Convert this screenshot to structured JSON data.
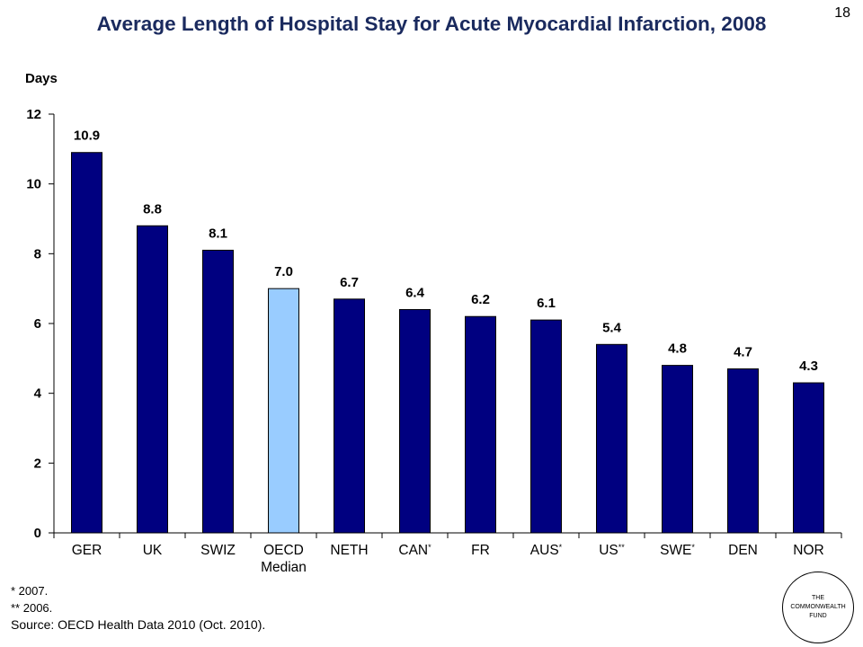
{
  "page": {
    "title": "Average Length of Hospital Stay for Acute Myocardial Infarction, 2008",
    "page_number": "18"
  },
  "chart_data": {
    "type": "bar",
    "title": "Average Length of Hospital Stay for Acute Myocardial Infarction, 2008",
    "ylabel": "Days",
    "xlabel": "",
    "ylim": [
      0,
      12
    ],
    "yticks": [
      0,
      2,
      4,
      6,
      8,
      10,
      12
    ],
    "grid": false,
    "categories": [
      {
        "name": "GER",
        "mark": ""
      },
      {
        "name": "UK",
        "mark": ""
      },
      {
        "name": "SWIZ",
        "mark": ""
      },
      {
        "name": "OECD",
        "line2": "Median",
        "mark": ""
      },
      {
        "name": "NETH",
        "mark": ""
      },
      {
        "name": "CAN",
        "mark": "*"
      },
      {
        "name": "FR",
        "mark": ""
      },
      {
        "name": "AUS",
        "mark": "*"
      },
      {
        "name": "US",
        "mark": "**"
      },
      {
        "name": "SWE",
        "mark": "*"
      },
      {
        "name": "DEN",
        "mark": ""
      },
      {
        "name": "NOR",
        "mark": ""
      }
    ],
    "values": [
      10.9,
      8.8,
      8.1,
      7.0,
      6.7,
      6.4,
      6.2,
      6.1,
      5.4,
      4.8,
      4.7,
      4.3
    ],
    "data_labels": [
      "10.9",
      "8.8",
      "8.1",
      "7.0",
      "6.7",
      "6.4",
      "6.2",
      "6.1",
      "5.4",
      "4.8",
      "4.7",
      "4.3"
    ],
    "colors": {
      "bar": "#000080",
      "highlight": "#99ccff",
      "highlight_index": 3
    }
  },
  "footnotes": {
    "note1": "* 2007.",
    "note2": "** 2006.",
    "source": "Source: OECD Health Data 2010 (Oct. 2010)."
  },
  "logo": {
    "line1": "THE",
    "line2": "COMMONWEALTH",
    "line3": "FUND"
  }
}
